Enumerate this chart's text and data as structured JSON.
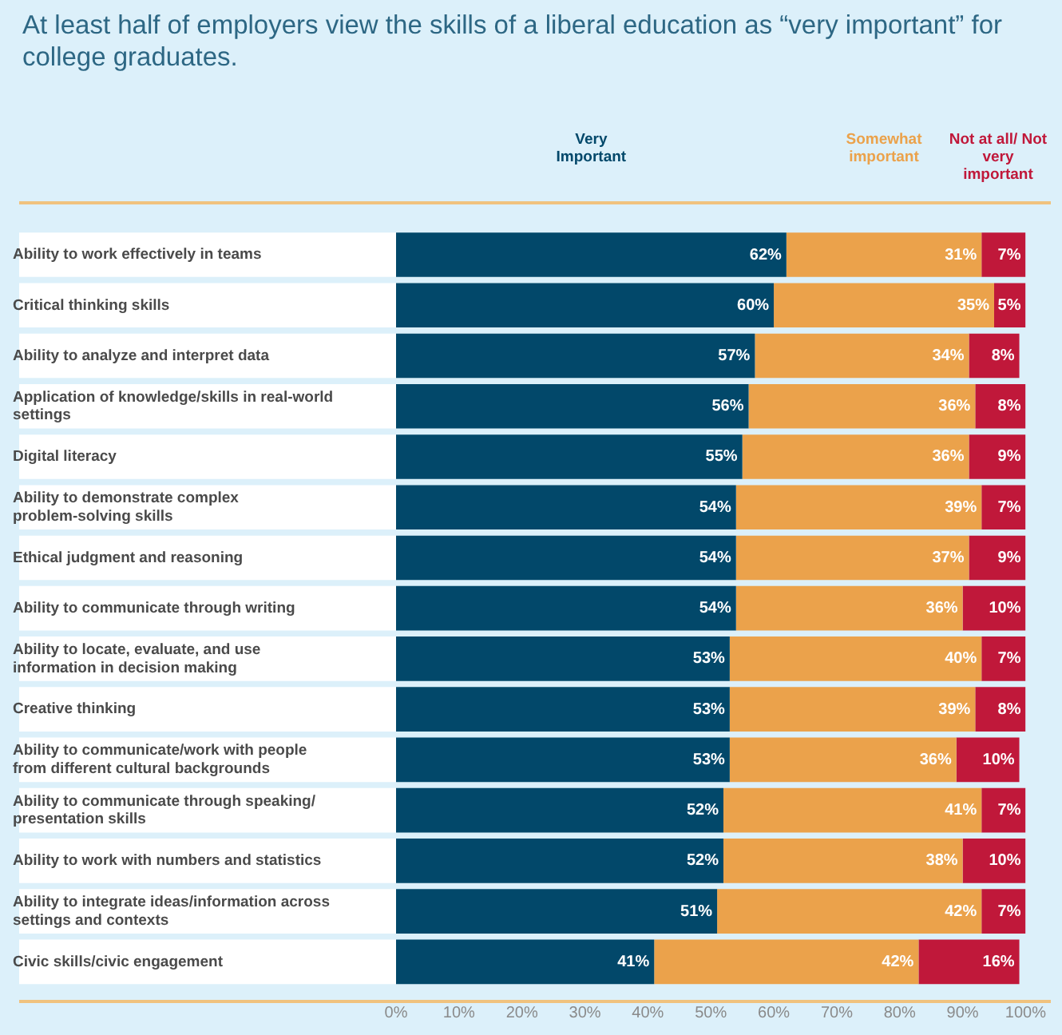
{
  "chart_data": {
    "type": "bar",
    "orientation": "horizontal",
    "stacked": true,
    "title": "At least half of employers view the skills of a liberal education as “very important” for college graduates.",
    "categories": [
      "Ability to work effectively in teams",
      "Critical thinking skills",
      "Ability to analyze and interpret data",
      "Application of knowledge/skills in real-world settings",
      "Digital literacy",
      "Ability to demonstrate complex problem-solving skills",
      "Ethical judgment and reasoning",
      "Ability to communicate through writing",
      "Ability to locate, evaluate, and use information in decision making",
      "Creative thinking",
      "Ability to communicate/work with people from different cultural backgrounds",
      "Ability to communicate through speaking/ presentation skills",
      "Ability to work with numbers and statistics",
      "Ability to integrate ideas/information across settings and contexts",
      "Civic skills/civic engagement"
    ],
    "series": [
      {
        "name": "Very Important",
        "color": "#02486a",
        "values": [
          62,
          60,
          57,
          56,
          55,
          54,
          54,
          54,
          53,
          53,
          53,
          52,
          52,
          51,
          41
        ],
        "value_labels": [
          "62%",
          "60%",
          "57%",
          "56%",
          "55%",
          "54%",
          "54%",
          "54%",
          "53%",
          "53%",
          "53%",
          "52%",
          "52%",
          "51%",
          "41%"
        ]
      },
      {
        "name": "Somewhat important",
        "color": "#eba24b",
        "values": [
          31,
          35,
          34,
          36,
          36,
          39,
          37,
          36,
          40,
          39,
          36,
          41,
          38,
          42,
          42
        ],
        "value_labels": [
          "31%",
          "35%",
          "34%",
          "36%",
          "36%",
          "39%",
          "37%",
          "36%",
          "40%",
          "39%",
          "36%",
          "41%",
          "38%",
          "42%",
          "42%"
        ]
      },
      {
        "name": "Not at all/ Not very important",
        "color": "#c0183a",
        "values": [
          7,
          5,
          8,
          8,
          9,
          7,
          9,
          10,
          7,
          8,
          10,
          7,
          10,
          7,
          16
        ],
        "value_labels": [
          "7%",
          "5%",
          "8%",
          "8%",
          "9%",
          "7%",
          "9%",
          "10%",
          "7%",
          "8%",
          "10%",
          "7%",
          "10%",
          "7%",
          "16%"
        ]
      }
    ],
    "xlim": [
      0,
      100
    ],
    "xticks": [
      {
        "value": 0,
        "label": "0%"
      },
      {
        "value": 10,
        "label": "10%"
      },
      {
        "value": 20,
        "label": "20%"
      },
      {
        "value": 30,
        "label": "30%"
      },
      {
        "value": 40,
        "label": "40%"
      },
      {
        "value": 50,
        "label": "50%"
      },
      {
        "value": 60,
        "label": "60%"
      },
      {
        "value": 70,
        "label": "70%"
      },
      {
        "value": 80,
        "label": "80%"
      },
      {
        "value": 90,
        "label": "90%"
      },
      {
        "value": 100,
        "label": "100%"
      }
    ],
    "grid": false,
    "legend": "top"
  }
}
